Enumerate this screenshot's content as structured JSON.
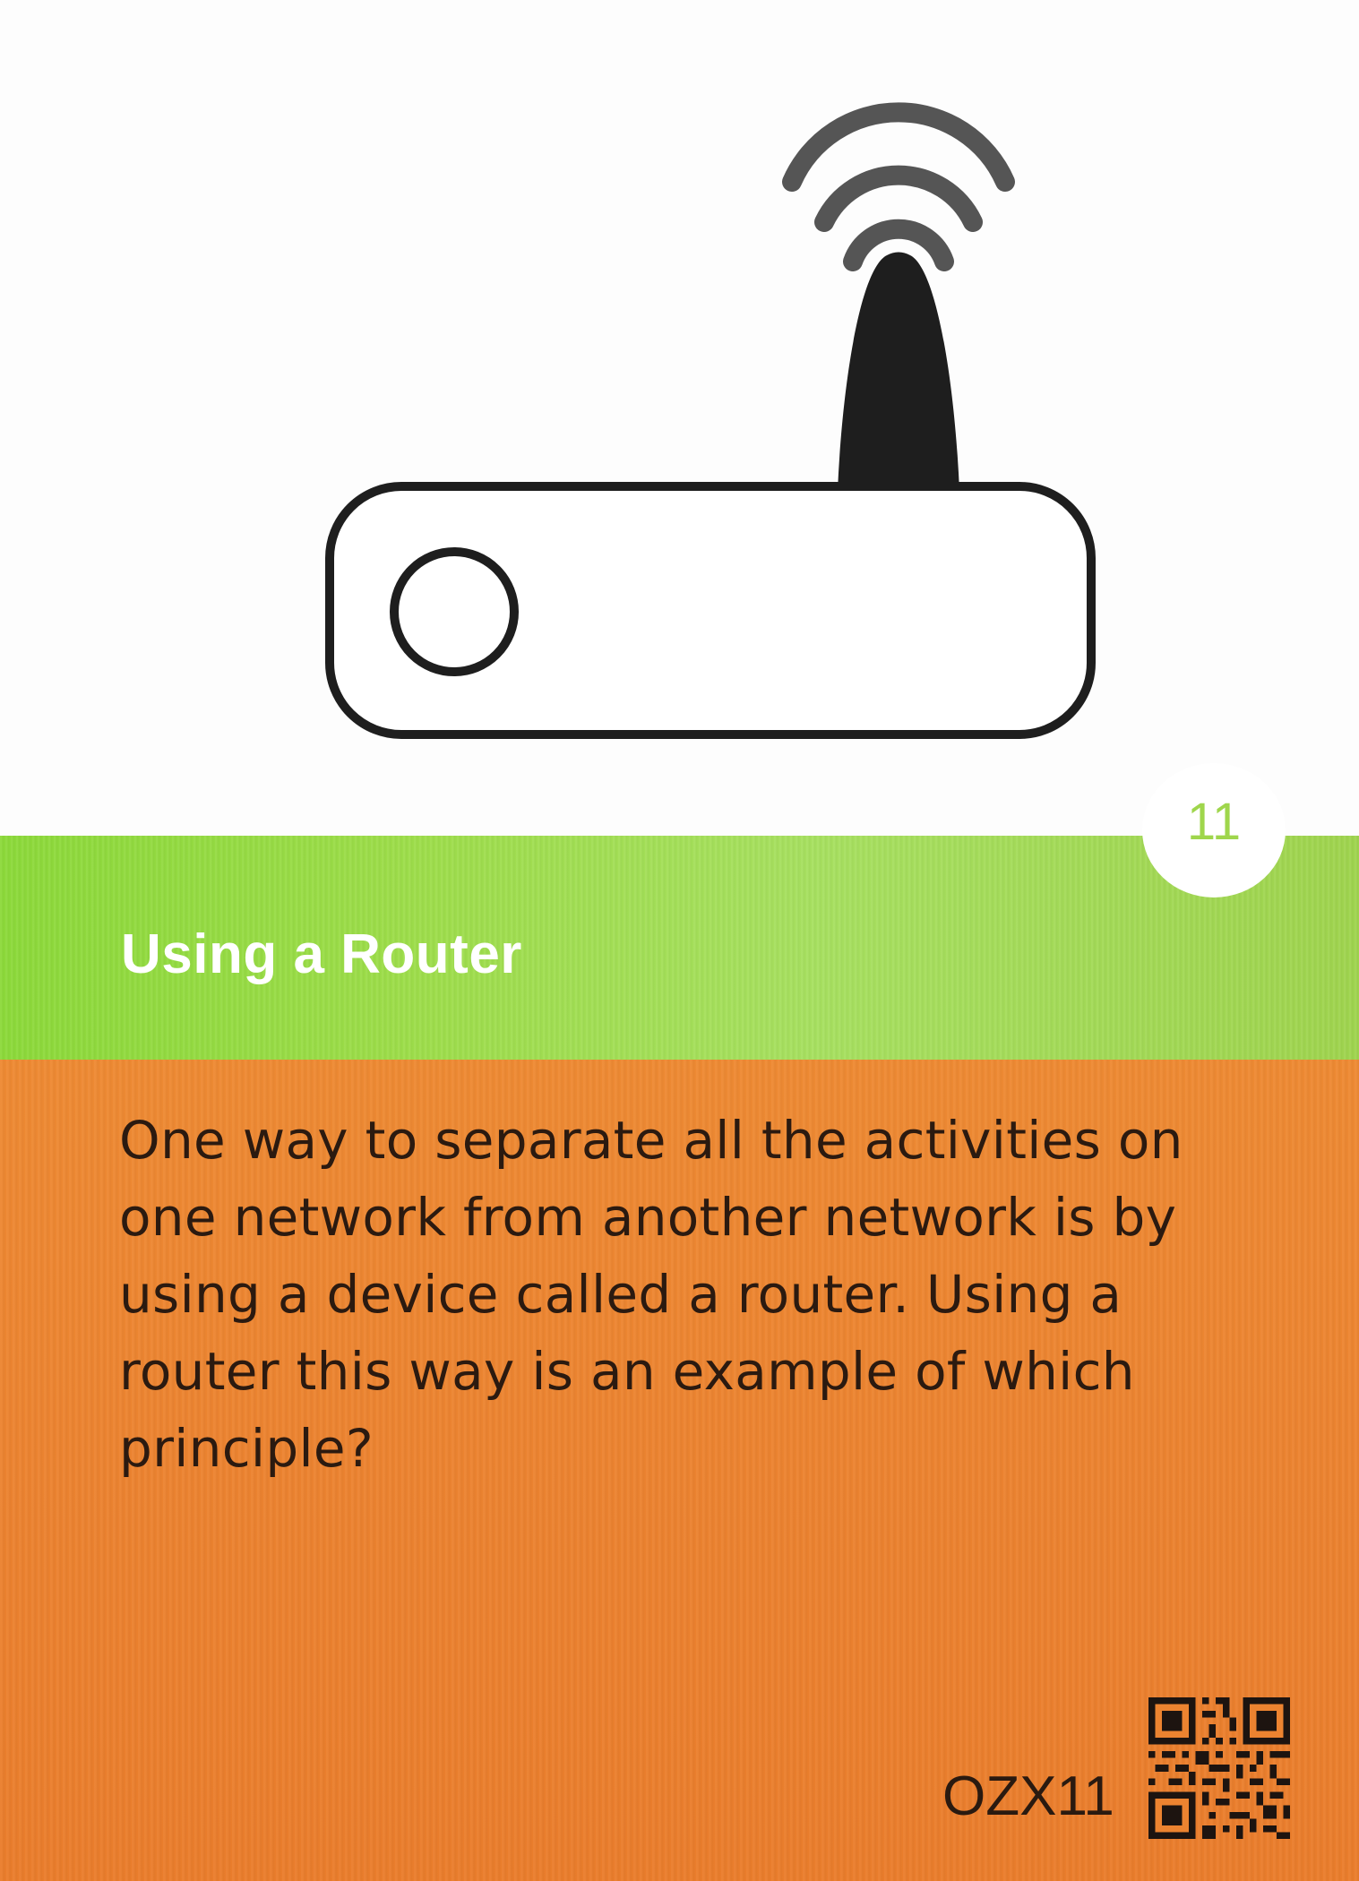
{
  "card": {
    "number": "11",
    "title": "Using a Router",
    "question": "One way to separate all the activities on one network from another network is by using a device called a router. Using a router this way is an example of which principle?",
    "code": "OZX11",
    "illustration_icon": "wifi-router-icon",
    "qr_icon": "qr-code-icon"
  },
  "colors": {
    "green_band": "#9ddd4a",
    "orange_panel": "#ec8330",
    "badge_number": "#9fd64c",
    "title_text": "#ffffff",
    "body_text": "#2b1a10",
    "icon_stroke": "#1e1e1e"
  }
}
